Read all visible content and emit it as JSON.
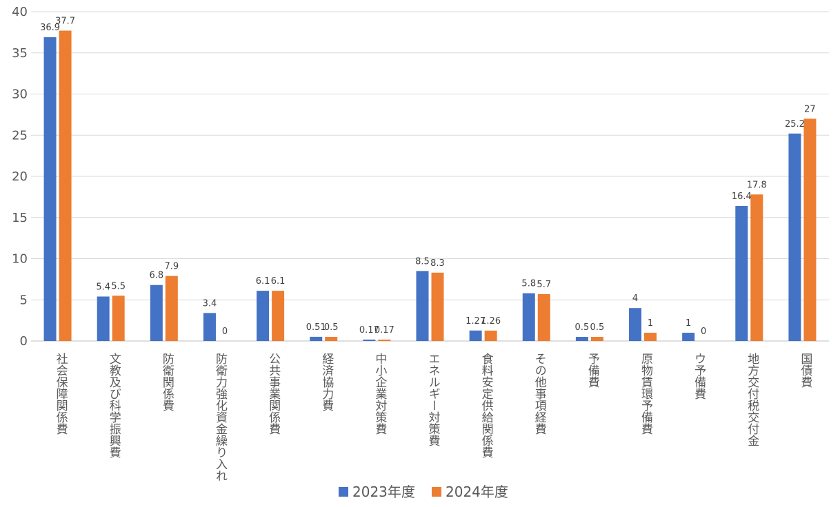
{
  "chart_data": {
    "type": "bar",
    "categories": [
      "社会保障関係費",
      "文教及び科学振興費",
      "防衛関係費",
      "防衛力強化資金繰り入れ",
      "公共事業関係費",
      "経済協力費",
      "中小企業対策費",
      "エネルギー対策費",
      "食料安定供給関係費",
      "その他事項経費",
      "予備費",
      "原物賃環予備費",
      "ウ予備費",
      "地方交付税交付金",
      "国債費"
    ],
    "series": [
      {
        "name": "2023年度",
        "color": "#4472C4",
        "values": [
          36.9,
          5.4,
          6.8,
          3.4,
          6.1,
          0.51,
          0.17,
          8.5,
          1.27,
          5.8,
          0.5,
          4,
          1,
          16.4,
          25.2
        ]
      },
      {
        "name": "2024年度",
        "color": "#ED7D31",
        "values": [
          37.7,
          5.5,
          7.9,
          0,
          6.1,
          0.5,
          0.17,
          8.3,
          1.26,
          5.7,
          0.5,
          1,
          0,
          17.8,
          27
        ]
      }
    ],
    "labels": [
      [
        "36.9",
        "5.4",
        "6.8",
        "3.4",
        "6.1",
        "0.51",
        "0.17",
        "8.5",
        "1.27",
        "5.8",
        "0.5",
        "4",
        "1",
        "16.4",
        "25.2"
      ],
      [
        "37.7",
        "5.5",
        "7.9",
        "0",
        "6.1",
        "0.5",
        "0.17",
        "8.3",
        "1.26",
        "5.7",
        "0.5",
        "1",
        "0",
        "17.8",
        "27"
      ]
    ],
    "yticks": [
      "0",
      "5",
      "10",
      "15",
      "20",
      "25",
      "30",
      "35",
      "40"
    ],
    "ylim": [
      0,
      40
    ],
    "grid": true,
    "legend": "bottom-center",
    "title": "",
    "xlabel": "",
    "ylabel": ""
  }
}
